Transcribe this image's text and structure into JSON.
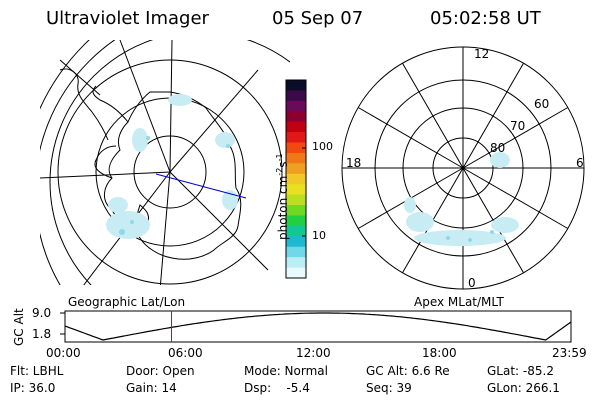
{
  "header": {
    "title": "Ultraviolet Imager",
    "date": "05 Sep 07",
    "time": "05:02:58 UT"
  },
  "colorbar": {
    "unit_prefix": "photon cm",
    "unit_exp1": "-2",
    "unit_mid": "s",
    "unit_exp2": "-1",
    "ticks": [
      "100",
      "10"
    ],
    "colors": [
      "#0b0b2a",
      "#3a0a4a",
      "#6a0a5a",
      "#8b0030",
      "#c00010",
      "#e01818",
      "#f04a10",
      "#f07818",
      "#f0a020",
      "#f0c828",
      "#e8e020",
      "#b8e020",
      "#70d820",
      "#20d040",
      "#10c890",
      "#20b8d0",
      "#70d8e8",
      "#b8eef4",
      "#e8fafc"
    ]
  },
  "left_map": {
    "caption": "Geographic Lat/Lon"
  },
  "right_map": {
    "caption": "Apex MLat/MLT",
    "mlt_labels": [
      "12",
      "18",
      "6",
      "0"
    ],
    "lat_labels": [
      "60",
      "70",
      "80"
    ]
  },
  "altitude_plot": {
    "ylabel": "GC Alt",
    "yticks": [
      "9.0",
      "1.8"
    ],
    "xticks": [
      "00:00",
      "06:00",
      "12:00",
      "18:00",
      "23:59"
    ],
    "current_time_hours": 5.05
  },
  "info": {
    "row1": [
      "Flt: LBHL",
      "Door: Open",
      "Mode: Normal",
      "GC Alt: 6.6 Re",
      "GLat: -85.2"
    ],
    "row2": [
      "IP: 36.0",
      "Gain: 14",
      "Dsp:    -5.4",
      "Seq: 39",
      "GLon: 266.1"
    ]
  }
}
